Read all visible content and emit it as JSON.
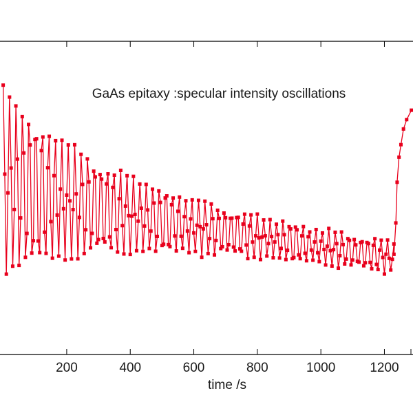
{
  "chart_data": {
    "type": "line",
    "title": "GaAs epitaxy :specular intensity oscillations",
    "xlabel": "time /s",
    "ylabel": "",
    "xlim": [
      -10,
      1290
    ],
    "ylim": [
      0,
      1
    ],
    "x_ticks": [
      200,
      400,
      600,
      800,
      1000,
      1200
    ],
    "x_tick_labels": [
      "200",
      "400",
      "600",
      "800",
      "1000",
      "1200"
    ],
    "grid": false,
    "marker": "square",
    "oscillation": {
      "t_start": 0,
      "t_end": 1230,
      "period_s": 20.5,
      "sample_interval_s": 5,
      "baseline_start": 0.56,
      "baseline_end": 0.31,
      "amplitude_start": 0.3,
      "amplitude_end": 0.04,
      "decay_time_s": 350
    },
    "recovery": {
      "x": [
        1230,
        1236,
        1240,
        1246,
        1252,
        1260,
        1270,
        1285
      ],
      "y": [
        0.32,
        0.42,
        0.55,
        0.63,
        0.67,
        0.72,
        0.75,
        0.78
      ]
    },
    "colors": {
      "series": "#e8001c",
      "axis": "#000000",
      "text": "#1a1a1a"
    }
  }
}
